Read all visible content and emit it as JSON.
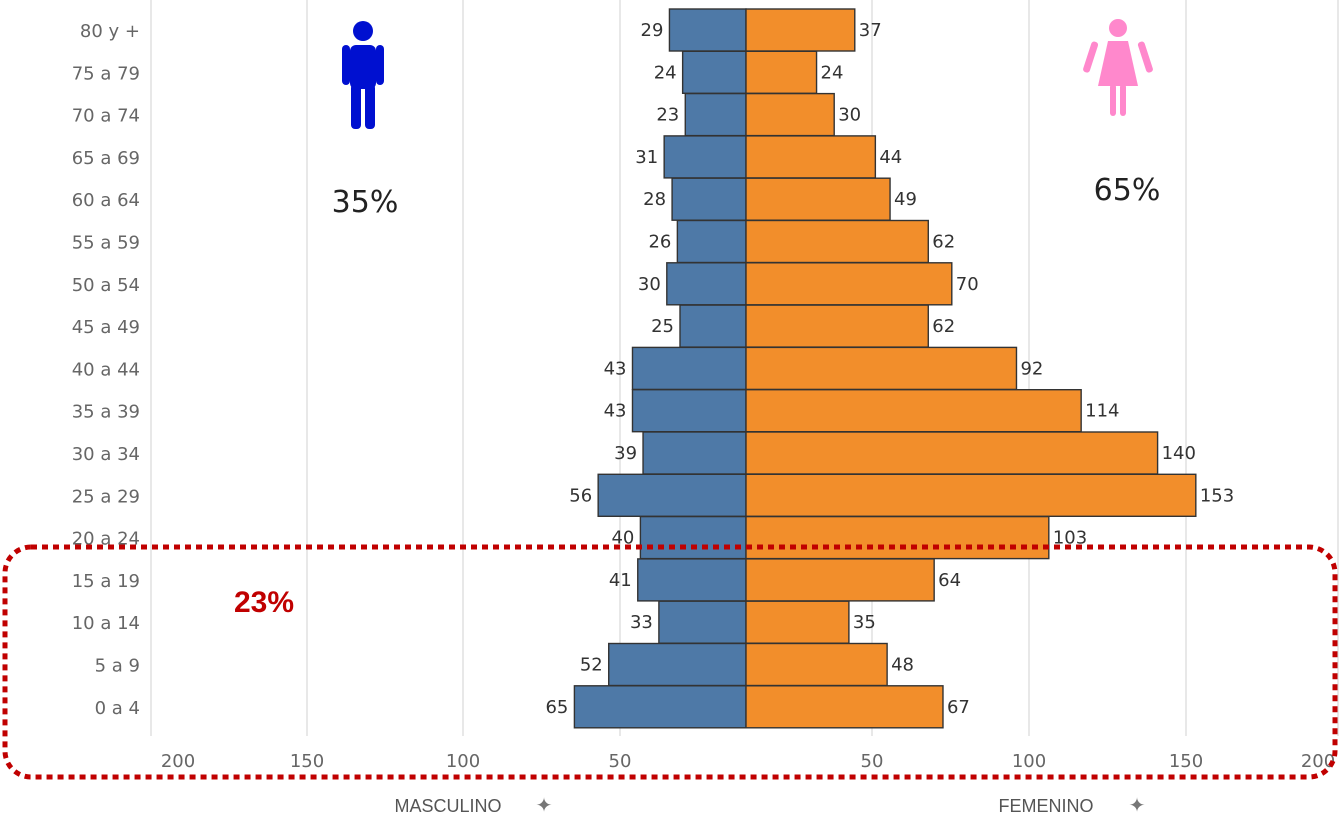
{
  "chart_data": {
    "type": "bar",
    "orientation": "horizontal",
    "layout": "population-pyramid",
    "categories": [
      "80 y +",
      "75 a 79",
      "70 a 74",
      "65 a 69",
      "60 a 64",
      "55 a 59",
      "50 a 54",
      "45 a 49",
      "40 a 44",
      "35 a 39",
      "30 a 34",
      "25 a 29",
      "20 a 24",
      "15 a 19",
      "10 a 14",
      "5 a 9",
      "0 a 4"
    ],
    "series": [
      {
        "name": "MASCULINO",
        "color": "#4e79a7",
        "values": [
          29,
          24,
          23,
          31,
          28,
          26,
          30,
          25,
          43,
          43,
          39,
          56,
          40,
          41,
          33,
          52,
          65
        ]
      },
      {
        "name": "FEMENINO",
        "color": "#f28e2b",
        "values": [
          37,
          24,
          30,
          44,
          49,
          62,
          70,
          62,
          92,
          114,
          140,
          153,
          103,
          64,
          35,
          48,
          67
        ]
      }
    ],
    "left_axis": {
      "label": "MASCULINO",
      "ticks": [
        "200",
        "150",
        "100",
        "50"
      ]
    },
    "right_axis": {
      "label": "FEMENINO",
      "ticks": [
        "50",
        "100",
        "150",
        "200"
      ]
    },
    "xlim": [
      0,
      200
    ],
    "grid": true,
    "annotations": [
      {
        "text": "35%",
        "meaning": "male share",
        "icon": "male-person-icon",
        "color": "#0010d0"
      },
      {
        "text": "65%",
        "meaning": "female share",
        "icon": "female-person-icon",
        "color": "#ff88cc"
      },
      {
        "text": "23%",
        "meaning": "share of ages 0 a 19",
        "color": "#c00000",
        "highlight": [
          "15 a 19",
          "10 a 14",
          "5 a 9",
          "0 a 4"
        ]
      }
    ]
  },
  "labels": {
    "male_axis_title": "MASCULINO",
    "female_axis_title": "FEMENINO",
    "male_pct": "35%",
    "female_pct": "65%",
    "highlight_pct": "23%"
  },
  "colors": {
    "male": "#4e79a7",
    "female": "#f28e2b",
    "male_icon": "#0010d0",
    "female_icon": "#ff88cc",
    "highlight": "#c00000",
    "grid": "#d9d9d9",
    "bar_stroke": "#333333"
  }
}
